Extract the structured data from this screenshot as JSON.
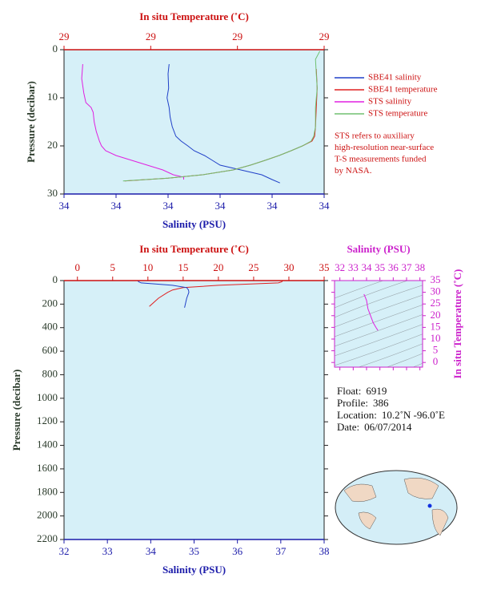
{
  "chart_data": [
    {
      "type": "profile",
      "x_label": "Salinity (PSU)",
      "x2_label": "In situ Temperature (˚C)",
      "y_label": "Pressure (decibar)",
      "background": "#d6f0f8",
      "xlim": [
        33.8,
        34.3
      ],
      "xticks": [
        {
          "value": 33.8,
          "label": "34"
        },
        {
          "value": 33.9,
          "label": "34"
        },
        {
          "value": 34.0,
          "label": "34"
        },
        {
          "value": 34.1,
          "label": "34"
        },
        {
          "value": 34.2,
          "label": "34"
        },
        {
          "value": 34.3,
          "label": "34"
        }
      ],
      "x2lim": [
        28.7,
        29.0
      ],
      "x2ticks": [
        {
          "value": 28.7,
          "label": "29"
        },
        {
          "value": 28.8,
          "label": "29"
        },
        {
          "value": 28.9,
          "label": "29"
        },
        {
          "value": 29.0,
          "label": "29"
        }
      ],
      "ylim": [
        0,
        30
      ],
      "yticks": [
        0,
        10,
        20,
        30
      ],
      "legend": true,
      "series": [
        {
          "name": "SBE41 salinity",
          "color": "#2040c8",
          "axis": "x",
          "pressure": [
            3,
            5,
            8,
            10,
            12,
            14,
            16,
            18,
            19,
            20,
            21,
            22,
            23,
            24,
            25,
            26,
            27,
            27.7
          ],
          "values": [
            34.002,
            34.0,
            34.001,
            33.998,
            34.002,
            34.004,
            34.008,
            34.015,
            34.025,
            34.038,
            34.05,
            34.07,
            34.085,
            34.1,
            34.14,
            34.18,
            34.2,
            34.215
          ]
        },
        {
          "name": "SBE41 temperature",
          "color": "#e02020",
          "axis": "x2",
          "pressure": [
            4,
            8,
            12,
            16,
            18,
            19,
            20,
            21,
            22,
            23,
            24,
            25,
            26,
            26.7,
            27.3
          ],
          "values": [
            28.991,
            28.992,
            28.991,
            28.99,
            28.989,
            28.986,
            28.975,
            28.962,
            28.948,
            28.932,
            28.915,
            28.895,
            28.86,
            28.82,
            28.77
          ]
        },
        {
          "name": "STS salinity",
          "color": "#e020e0",
          "axis": "x",
          "pressure": [
            3,
            6,
            9,
            11,
            12,
            13,
            15,
            17,
            19,
            20,
            21,
            22,
            23,
            24,
            25,
            26,
            26.5,
            27
          ],
          "values": [
            33.836,
            33.834,
            33.838,
            33.842,
            33.852,
            33.856,
            33.858,
            33.862,
            33.868,
            33.872,
            33.88,
            33.9,
            33.93,
            33.96,
            33.99,
            34.01,
            34.03,
            34.03
          ]
        },
        {
          "name": "STS temperature",
          "color": "#70c070",
          "axis": "x2",
          "pressure": [
            0.3,
            2,
            5,
            8,
            12,
            16,
            18,
            19,
            20,
            21,
            22,
            23,
            24,
            25,
            26,
            26.7,
            27.3
          ],
          "values": [
            28.995,
            28.99,
            28.991,
            28.992,
            28.99,
            28.99,
            28.988,
            28.985,
            28.975,
            28.962,
            28.948,
            28.932,
            28.915,
            28.895,
            28.86,
            28.82,
            28.768
          ]
        }
      ],
      "note_lines": [
        "STS refers to auxiliary",
        "high-resolution near-surface",
        "T-S measurements funded",
        "by NASA."
      ]
    },
    {
      "type": "profile",
      "x_label": "Salinity (PSU)",
      "x2_label": "In situ Temperature (˚C)",
      "y_label": "Pressure (decibar)",
      "background": "#d6f0f8",
      "xlim": [
        32,
        38
      ],
      "xticks": [
        32,
        33,
        34,
        35,
        36,
        37,
        38
      ],
      "x2lim": [
        -1.9,
        35
      ],
      "x2ticks": [
        0,
        5,
        10,
        15,
        20,
        25,
        30,
        35
      ],
      "ylim": [
        0,
        2200
      ],
      "yticks": [
        0,
        200,
        400,
        600,
        800,
        1000,
        1200,
        1400,
        1600,
        1800,
        2000,
        2200
      ],
      "legend": false,
      "series": [
        {
          "color": "#e02020",
          "axis": "x2",
          "pressure": [
            0,
            10,
            20,
            40,
            60,
            80,
            100,
            150,
            220
          ],
          "values": [
            29.1,
            29,
            28.5,
            20,
            15,
            13.5,
            12.8,
            11.5,
            10.2
          ]
        },
        {
          "color": "#2040c8",
          "axis": "x",
          "pressure": [
            0,
            10,
            20,
            40,
            60,
            80,
            100,
            150,
            230
          ],
          "values": [
            33.7,
            33.72,
            33.78,
            34.5,
            34.83,
            34.87,
            34.88,
            34.83,
            34.78
          ]
        }
      ]
    },
    {
      "type": "ts",
      "x_label": "Salinity (PSU)",
      "y_label": "In situ Temperature (˚C)",
      "background": "#d6f0f8",
      "xlim": [
        31.6,
        38.2
      ],
      "xticks": [
        32,
        33,
        34,
        35,
        36,
        37,
        38
      ],
      "ylim": [
        -2,
        35
      ],
      "yticks": [
        0,
        5,
        10,
        15,
        20,
        25,
        30,
        35
      ],
      "series": [
        {
          "color": "#e020e0",
          "x": [
            33.8,
            33.9,
            34.0,
            34.1,
            34.3,
            34.5,
            34.7,
            34.85
          ],
          "values": [
            29.2,
            28,
            26.5,
            23,
            20,
            17,
            15,
            13.7
          ]
        }
      ]
    }
  ],
  "info": [
    {
      "label": "Float:",
      "value": "6919"
    },
    {
      "label": "Profile:",
      "value": "386"
    },
    {
      "label": "Location:",
      "value": "10.2˚N  -96.0˚E"
    },
    {
      "label": "Date:",
      "value": "06/07/2014"
    }
  ]
}
